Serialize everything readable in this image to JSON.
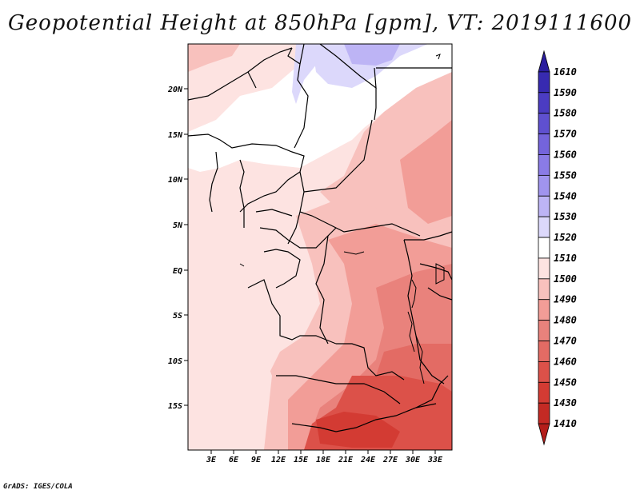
{
  "title": "Geopotential Height at 850hPa [gpm], VT: 2019111600",
  "credit": "GrADS: IGES/COLA",
  "map": {
    "lat_labels": [
      "20N",
      "15N",
      "10N",
      "5N",
      "EQ",
      "5S",
      "10S",
      "15S"
    ],
    "lon_labels": [
      "3E",
      "6E",
      "9E",
      "12E",
      "15E",
      "18E",
      "21E",
      "24E",
      "27E",
      "30E",
      "33E"
    ]
  },
  "colorbar": {
    "labels": [
      "1610",
      "1590",
      "1580",
      "1570",
      "1560",
      "1550",
      "1540",
      "1530",
      "1520",
      "1510",
      "1500",
      "1490",
      "1480",
      "1470",
      "1460",
      "1450",
      "1430",
      "1410"
    ],
    "colors": [
      "#2a1d9e",
      "#372ab0",
      "#4b3cc2",
      "#5f50d0",
      "#7464dc",
      "#8a7be6",
      "#a094ee",
      "#bdb4f5",
      "#dcd8fb",
      "#ffffff",
      "#fde3e1",
      "#f8c1bd",
      "#f29d97",
      "#e9827c",
      "#e36b64",
      "#dc5149",
      "#d33b33",
      "#c42a24",
      "#b41e1a"
    ]
  }
}
